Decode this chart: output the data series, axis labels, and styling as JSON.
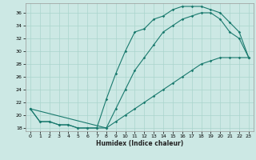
{
  "xlabel": "Humidex (Indice chaleur)",
  "bg_color": "#cce8e4",
  "grid_color": "#aad4cc",
  "line_color": "#1a7a6e",
  "xlim": [
    -0.5,
    23.5
  ],
  "ylim": [
    17.5,
    37.5
  ],
  "yticks": [
    18,
    20,
    22,
    24,
    26,
    28,
    30,
    32,
    34,
    36
  ],
  "xticks": [
    0,
    1,
    2,
    3,
    4,
    5,
    6,
    7,
    8,
    9,
    10,
    11,
    12,
    13,
    14,
    15,
    16,
    17,
    18,
    19,
    20,
    21,
    22,
    23
  ],
  "upper_x": [
    0,
    1,
    2,
    3,
    4,
    5,
    6,
    7,
    8,
    9,
    10,
    11,
    12,
    13,
    14,
    15,
    16,
    17,
    18,
    19,
    20,
    21,
    22,
    23
  ],
  "upper_y": [
    21,
    19,
    19,
    18.5,
    18.5,
    18,
    18,
    18,
    22.5,
    26.5,
    30,
    33,
    33.5,
    35,
    35.5,
    36.5,
    37,
    37,
    37,
    36.5,
    36,
    34.5,
    33,
    29
  ],
  "middle_x": [
    0,
    8,
    9,
    10,
    11,
    12,
    13,
    14,
    15,
    16,
    17,
    18,
    19,
    20,
    21,
    22,
    23
  ],
  "middle_y": [
    21,
    18,
    21,
    24,
    27,
    29,
    31,
    33,
    34,
    35,
    35.5,
    36,
    36,
    35,
    33,
    32,
    29
  ],
  "lower_x": [
    0,
    1,
    2,
    3,
    4,
    5,
    6,
    7,
    8,
    9,
    10,
    11,
    12,
    13,
    14,
    15,
    16,
    17,
    18,
    19,
    20,
    21,
    22,
    23
  ],
  "lower_y": [
    21,
    19,
    19,
    18.5,
    18.5,
    18,
    18,
    18,
    18,
    19,
    20,
    21,
    22,
    23,
    24,
    25,
    26,
    27,
    28,
    28.5,
    29,
    29,
    29,
    29
  ]
}
